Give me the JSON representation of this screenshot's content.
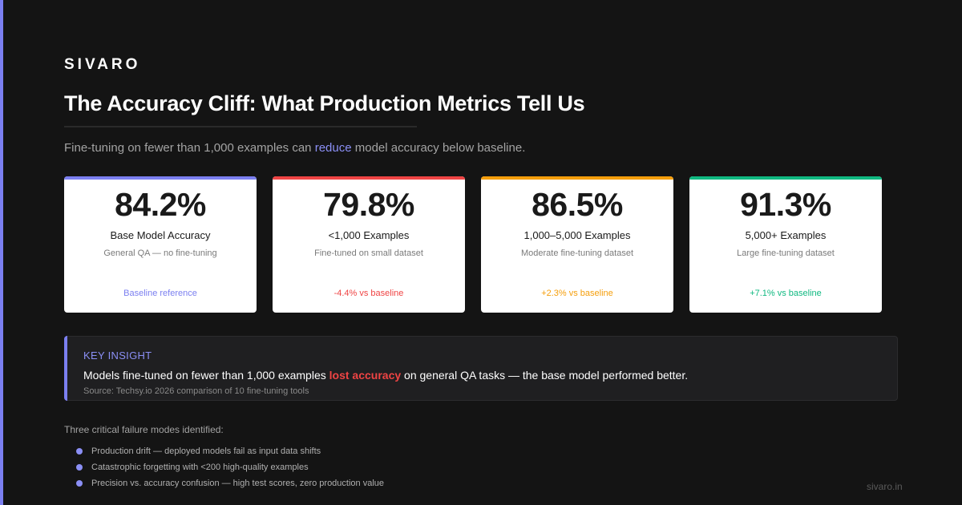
{
  "brand": "SIVARO",
  "title": "The Accuracy Cliff: What Production Metrics Tell Us",
  "subtitle": {
    "before": "Fine-tuning on fewer than 1,000 examples can ",
    "highlight": "reduce",
    "after": " model accuracy below baseline."
  },
  "cards": [
    {
      "value": "84.2%",
      "label": "Base Model Accuracy",
      "sub": "General QA — no fine-tuning",
      "delta": "Baseline reference",
      "color": "#7b7ff0"
    },
    {
      "value": "79.8%",
      "label": "<1,000 Examples",
      "sub": "Fine-tuned on small dataset",
      "delta": "-4.4% vs baseline",
      "color": "#ef4444"
    },
    {
      "value": "86.5%",
      "label": "1,000–5,000 Examples",
      "sub": "Moderate fine-tuning dataset",
      "delta": "+2.3% vs baseline",
      "color": "#f59e0b"
    },
    {
      "value": "91.3%",
      "label": "5,000+ Examples",
      "sub": "Large fine-tuning dataset",
      "delta": "+7.1% vs baseline",
      "color": "#10b981"
    }
  ],
  "insight": {
    "heading": "KEY INSIGHT",
    "before": "Models fine-tuned on fewer than 1,000 examples ",
    "highlight": "lost accuracy",
    "after": " on general QA tasks — the base model performed better.",
    "source": "Source: Techsy.io 2026 comparison of 10 fine-tuning tools"
  },
  "failure_modes": {
    "heading": "Three critical failure modes identified:",
    "items": [
      "Production drift — deployed models fail as input data shifts",
      "Catastrophic forgetting with <200 high-quality examples",
      "Precision vs. accuracy confusion — high test scores, zero production value"
    ]
  },
  "footer": "sivaro.in",
  "colors": {
    "background": "#141414",
    "accent": "#7b7ff0",
    "red": "#ef4444",
    "amber": "#f59e0b",
    "green": "#10b981"
  }
}
